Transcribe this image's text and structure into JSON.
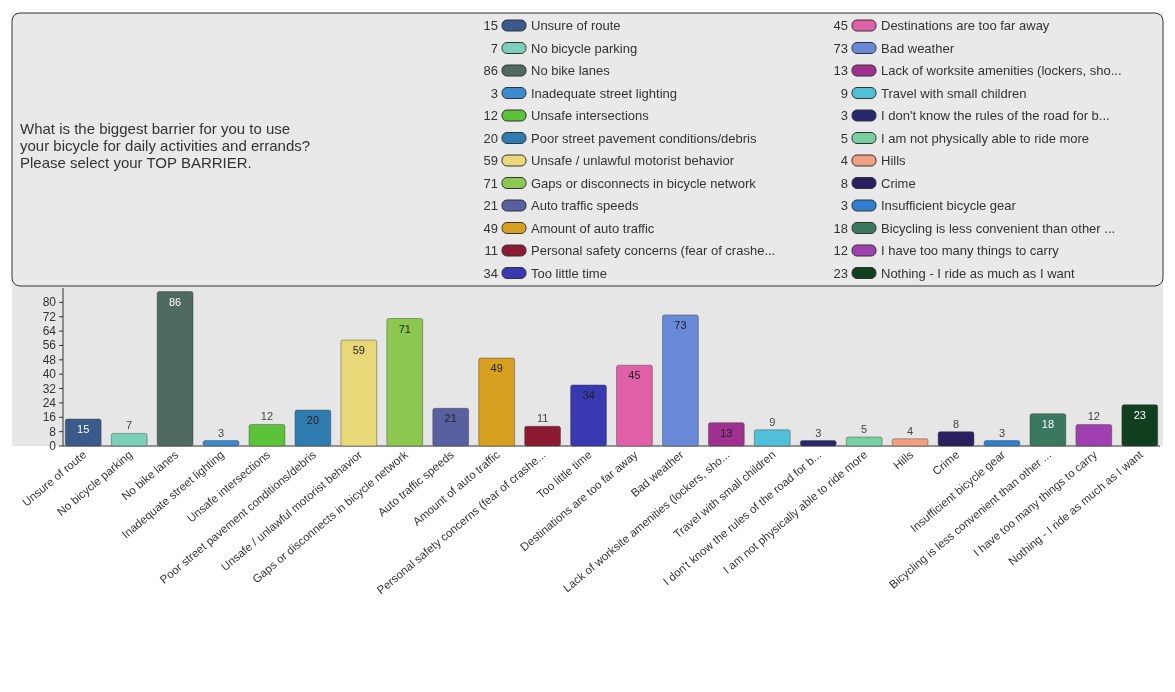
{
  "chart_data": {
    "type": "bar",
    "title": "What is the biggest barrier for you to use your bicycle for daily activities and errands?",
    "subtitle": "Please select your TOP BARRIER.",
    "categories": [
      "Unsure of route",
      "No bicycle parking",
      "No bike lanes",
      "Inadequate street lighting",
      "Unsafe intersections",
      "Poor street pavement conditions/debris",
      "Unsafe / unlawful motorist behavior",
      "Gaps or disconnects in bicycle network",
      "Auto traffic speeds",
      "Amount of auto traffic",
      "Personal safety concerns (fear of crashe...",
      "Too little time",
      "Destinations are too far away",
      "Bad weather",
      "Lack of worksite amenities (lockers, sho...",
      "Travel with small children",
      "I don't know the rules of the road for b...",
      "I am not physically able to ride more",
      "Hills",
      "Crime",
      "Insufficient bicycle gear",
      "Bicycling is less convenient than other ...",
      "I have too many things to carry",
      "Nothing - I ride as much as I want"
    ],
    "series": [
      {
        "name": "Unsure of route",
        "color": "#3a5a8c",
        "values": [
          15,
          null,
          null,
          null,
          null,
          null,
          null,
          null,
          null,
          null,
          null,
          null,
          null,
          null,
          null,
          null,
          null,
          null,
          null,
          null,
          null,
          null,
          null,
          null
        ]
      },
      {
        "name": "No bicycle parking",
        "color": "#7ccfb8",
        "values": [
          null,
          7,
          null,
          null,
          null,
          null,
          null,
          null,
          null,
          null,
          null,
          null,
          null,
          null,
          null,
          null,
          null,
          null,
          null,
          null,
          null,
          null,
          null,
          null
        ]
      },
      {
        "name": "No bike lanes",
        "color": "#4f6a60",
        "values": [
          null,
          null,
          86,
          null,
          null,
          null,
          null,
          null,
          null,
          null,
          null,
          null,
          null,
          null,
          null,
          null,
          null,
          null,
          null,
          null,
          null,
          null,
          null,
          null
        ]
      },
      {
        "name": "Inadequate street lighting",
        "color": "#3a8ad0",
        "values": [
          null,
          null,
          null,
          3,
          null,
          null,
          null,
          null,
          null,
          null,
          null,
          null,
          null,
          null,
          null,
          null,
          null,
          null,
          null,
          null,
          null,
          null,
          null,
          null
        ]
      },
      {
        "name": "Unsafe intersections",
        "color": "#5cc23a",
        "values": [
          null,
          null,
          null,
          null,
          12,
          null,
          null,
          null,
          null,
          null,
          null,
          null,
          null,
          null,
          null,
          null,
          null,
          null,
          null,
          null,
          null,
          null,
          null,
          null
        ]
      },
      {
        "name": "Poor street pavement conditions/debris",
        "color": "#2f7db0",
        "values": [
          null,
          null,
          null,
          null,
          null,
          20,
          null,
          null,
          null,
          null,
          null,
          null,
          null,
          null,
          null,
          null,
          null,
          null,
          null,
          null,
          null,
          null,
          null,
          null
        ]
      },
      {
        "name": "Unsafe / unlawful motorist behavior",
        "color": "#e8d878",
        "values": [
          null,
          null,
          null,
          null,
          null,
          null,
          59,
          null,
          null,
          null,
          null,
          null,
          null,
          null,
          null,
          null,
          null,
          null,
          null,
          null,
          null,
          null,
          null,
          null
        ]
      },
      {
        "name": "Gaps or disconnects in bicycle network",
        "color": "#8cc850",
        "values": [
          null,
          null,
          null,
          null,
          null,
          null,
          null,
          71,
          null,
          null,
          null,
          null,
          null,
          null,
          null,
          null,
          null,
          null,
          null,
          null,
          null,
          null,
          null,
          null
        ]
      },
      {
        "name": "Auto traffic speeds",
        "color": "#5860a0",
        "values": [
          null,
          null,
          null,
          null,
          null,
          null,
          null,
          null,
          21,
          null,
          null,
          null,
          null,
          null,
          null,
          null,
          null,
          null,
          null,
          null,
          null,
          null,
          null,
          null
        ]
      },
      {
        "name": "Amount of auto traffic",
        "color": "#d8a020",
        "values": [
          null,
          null,
          null,
          null,
          null,
          null,
          null,
          null,
          null,
          49,
          null,
          null,
          null,
          null,
          null,
          null,
          null,
          null,
          null,
          null,
          null,
          null,
          null,
          null
        ]
      },
      {
        "name": "Personal safety concerns (fear of crashe...",
        "color": "#8c1a30",
        "values": [
          null,
          null,
          null,
          null,
          null,
          null,
          null,
          null,
          null,
          null,
          11,
          null,
          null,
          null,
          null,
          null,
          null,
          null,
          null,
          null,
          null,
          null,
          null,
          null
        ]
      },
      {
        "name": "Too little time",
        "color": "#3838b0",
        "values": [
          null,
          null,
          null,
          null,
          null,
          null,
          null,
          null,
          null,
          null,
          null,
          34,
          null,
          null,
          null,
          null,
          null,
          null,
          null,
          null,
          null,
          null,
          null,
          null
        ]
      },
      {
        "name": "Destinations are too far away",
        "color": "#e060a8",
        "values": [
          null,
          null,
          null,
          null,
          null,
          null,
          null,
          null,
          null,
          null,
          null,
          null,
          45,
          null,
          null,
          null,
          null,
          null,
          null,
          null,
          null,
          null,
          null,
          null
        ]
      },
      {
        "name": "Bad weather",
        "color": "#6888d8",
        "values": [
          null,
          null,
          null,
          null,
          null,
          null,
          null,
          null,
          null,
          null,
          null,
          null,
          null,
          73,
          null,
          null,
          null,
          null,
          null,
          null,
          null,
          null,
          null,
          null
        ]
      },
      {
        "name": "Lack of worksite amenities (lockers, sho...",
        "color": "#a03090",
        "values": [
          null,
          null,
          null,
          null,
          null,
          null,
          null,
          null,
          null,
          null,
          null,
          null,
          null,
          null,
          13,
          null,
          null,
          null,
          null,
          null,
          null,
          null,
          null,
          null
        ]
      },
      {
        "name": "Travel with small children",
        "color": "#50c0d8",
        "values": [
          null,
          null,
          null,
          null,
          null,
          null,
          null,
          null,
          null,
          null,
          null,
          null,
          null,
          null,
          null,
          9,
          null,
          null,
          null,
          null,
          null,
          null,
          null,
          null
        ]
      },
      {
        "name": "I don't know the rules of the road for b...",
        "color": "#282870",
        "values": [
          null,
          null,
          null,
          null,
          null,
          null,
          null,
          null,
          null,
          null,
          null,
          null,
          null,
          null,
          null,
          null,
          3,
          null,
          null,
          null,
          null,
          null,
          null,
          null
        ]
      },
      {
        "name": "I am not physically able to ride more",
        "color": "#78d0a0",
        "values": [
          null,
          null,
          null,
          null,
          null,
          null,
          null,
          null,
          null,
          null,
          null,
          null,
          null,
          null,
          null,
          null,
          null,
          5,
          null,
          null,
          null,
          null,
          null,
          null
        ]
      },
      {
        "name": "Hills",
        "color": "#f0a080",
        "values": [
          null,
          null,
          null,
          null,
          null,
          null,
          null,
          null,
          null,
          null,
          null,
          null,
          null,
          null,
          null,
          null,
          null,
          null,
          4,
          null,
          null,
          null,
          null,
          null
        ]
      },
      {
        "name": "Crime",
        "color": "#2a2060",
        "values": [
          null,
          null,
          null,
          null,
          null,
          null,
          null,
          null,
          null,
          null,
          null,
          null,
          null,
          null,
          null,
          null,
          null,
          null,
          null,
          8,
          null,
          null,
          null,
          null
        ]
      },
      {
        "name": "Insufficient bicycle gear",
        "color": "#3080d0",
        "values": [
          null,
          null,
          null,
          null,
          null,
          null,
          null,
          null,
          null,
          null,
          null,
          null,
          null,
          null,
          null,
          null,
          null,
          null,
          null,
          null,
          3,
          null,
          null,
          null
        ]
      },
      {
        "name": "Bicycling is less convenient than other ...",
        "color": "#3a7860",
        "values": [
          null,
          null,
          null,
          null,
          null,
          null,
          null,
          null,
          null,
          null,
          null,
          null,
          null,
          null,
          null,
          null,
          null,
          null,
          null,
          null,
          null,
          18,
          null,
          null
        ]
      },
      {
        "name": "I have too many things to carry",
        "color": "#a040b0",
        "values": [
          null,
          null,
          null,
          null,
          null,
          null,
          null,
          null,
          null,
          null,
          null,
          null,
          null,
          null,
          null,
          null,
          null,
          null,
          null,
          null,
          null,
          null,
          12,
          null
        ]
      },
      {
        "name": "Nothing - I ride as much as I want",
        "color": "#104020",
        "values": [
          null,
          null,
          null,
          null,
          null,
          null,
          null,
          null,
          null,
          null,
          null,
          null,
          null,
          null,
          null,
          null,
          null,
          null,
          null,
          null,
          null,
          null,
          null,
          23
        ]
      }
    ],
    "annotations": [
      "15",
      "7",
      "86",
      "3",
      "12",
      "20",
      "59",
      "71",
      "21",
      "49",
      "11",
      "34",
      "45",
      "73",
      "13",
      "9",
      "3",
      "5",
      "4",
      "8",
      "3",
      "18",
      "12",
      "23"
    ],
    "stacked": true,
    "ylim": [
      0,
      88
    ],
    "yticks": [
      0,
      8,
      16,
      24,
      32,
      40,
      48,
      56,
      64,
      72,
      80
    ],
    "data_labels": true,
    "legend": "top right"
  }
}
